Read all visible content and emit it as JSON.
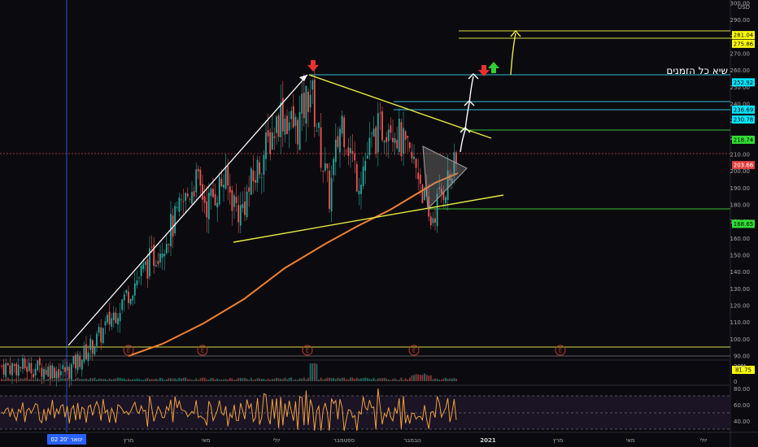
{
  "price_axis": {
    "currency": "USD",
    "ticks": [
      "300.00",
      "290.00",
      "280.00",
      "270.00",
      "260.00",
      "250.00",
      "240.00",
      "230.00",
      "220.00",
      "210.00",
      "200.00",
      "190.00",
      "180.00",
      "170.00",
      "160.00",
      "150.00",
      "140.00",
      "130.00",
      "120.00",
      "110.00",
      "100.00",
      "90.00"
    ],
    "volume_ticks": [
      "20M",
      "0"
    ],
    "rsi_ticks": [
      "80.00",
      "60.00",
      "40.00"
    ]
  },
  "price_tags": [
    {
      "label": "281.04",
      "bg": "#ffff00",
      "fg": "#000000"
    },
    {
      "label": "275.86",
      "bg": "#ffff00",
      "fg": "#000000"
    },
    {
      "label": "252.92",
      "bg": "#00e5ff",
      "fg": "#000000"
    },
    {
      "label": "236.69",
      "bg": "#00e5ff",
      "fg": "#000000"
    },
    {
      "label": "230.78",
      "bg": "#00e5ff",
      "fg": "#000000"
    },
    {
      "label": "218.74",
      "bg": "#33dd33",
      "fg": "#000000"
    },
    {
      "label": "203.66",
      "bg": "#e04040",
      "fg": "#ffffff"
    },
    {
      "label": "168.65",
      "bg": "#33dd33",
      "fg": "#000000"
    },
    {
      "label": "81.75",
      "bg": "#ffff00",
      "fg": "#000000"
    }
  ],
  "annotation": {
    "text": "שיא כל הזמנים"
  },
  "earnings_marker": "E",
  "time_axis": {
    "cursor_label": "02 ינואר '20",
    "labels": [
      "מרץ",
      "מאי",
      "יולי",
      "ספטמבר",
      "נובמבר",
      "2021",
      "מרץ",
      "מאי",
      "יולי"
    ]
  },
  "colors": {
    "up": "#26a69a",
    "down": "#ef5350",
    "trend": "#ffff44",
    "ma": "#f08030",
    "rsi": "#f0a040",
    "cursor": "#2962ff"
  }
}
